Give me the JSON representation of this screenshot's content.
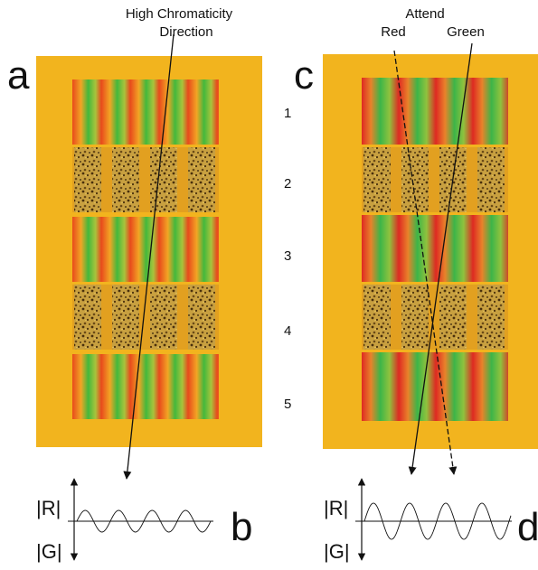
{
  "labels": {
    "a": "a",
    "b": "b",
    "c": "c",
    "d": "d"
  },
  "annotation_left": {
    "line1": "High Chromaticity",
    "line2": "Direction"
  },
  "annotation_right": {
    "title": "Attend",
    "red": "Red",
    "green": "Green"
  },
  "rows": [
    "1",
    "2",
    "3",
    "4",
    "5"
  ],
  "plot_b": {
    "r": "|R|",
    "g": "|G|"
  },
  "plot_d": {
    "r": "|R|",
    "g": "|G|"
  }
}
